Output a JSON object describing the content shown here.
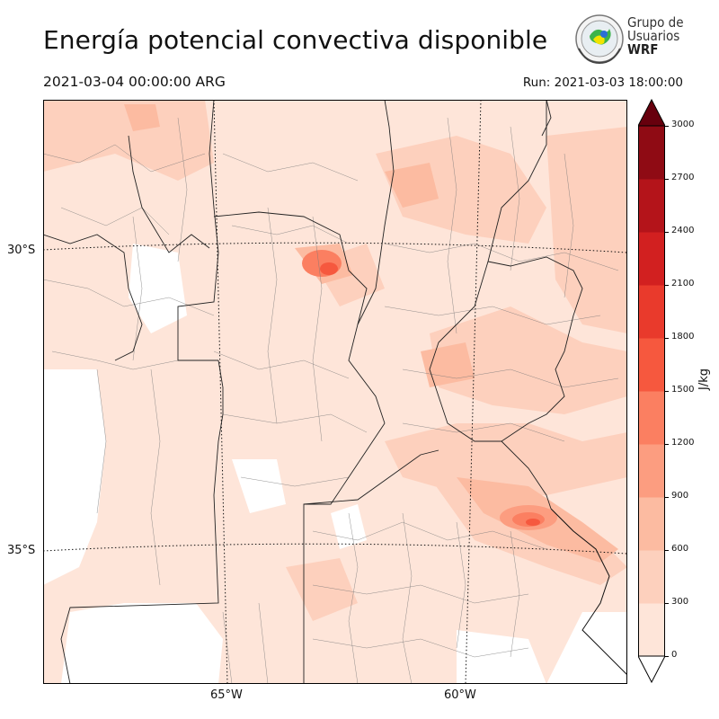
{
  "title": "Energía potencial convectiva disponible",
  "valid_time": "2021-03-04 00:00:00 ARG",
  "run_time": "Run: 2021-03-03 18:00:00",
  "logo": {
    "line1": "Grupo de",
    "line2": "Usuarios",
    "line3": "WRF"
  },
  "lat_labels": [
    "30°S",
    "35°S"
  ],
  "lon_labels": [
    "65°W",
    "60°W"
  ],
  "colorbar": {
    "unit": "J/kg",
    "ticks": [
      "0",
      "300",
      "600",
      "900",
      "1200",
      "1500",
      "1800",
      "2100",
      "2400",
      "2700",
      "3000"
    ],
    "colors": [
      "#fee5d9",
      "#fdd0bd",
      "#fcbba1",
      "#fc9d80",
      "#fb7f61",
      "#f6583e",
      "#e93a2c",
      "#d22020",
      "#b4141a",
      "#8f0b14",
      "#67000d"
    ],
    "extend_colors": {
      "low": "#ffffff",
      "high": "#67000d"
    }
  }
}
